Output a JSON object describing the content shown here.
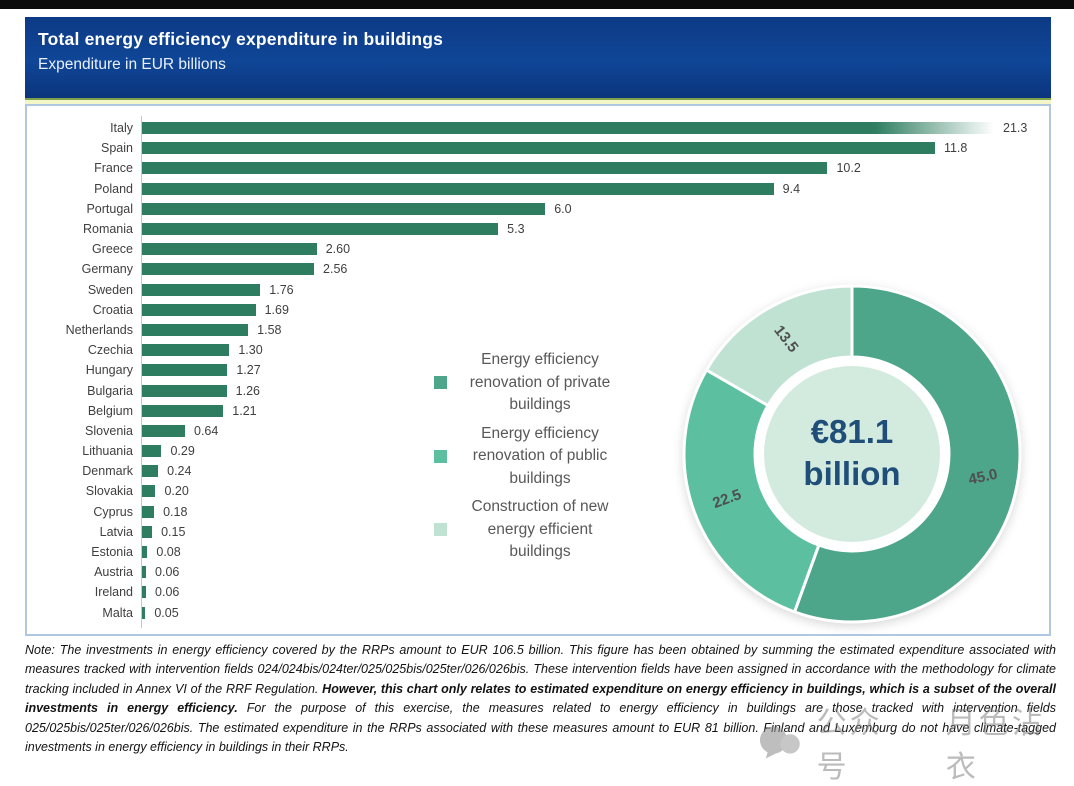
{
  "header": {
    "title": "Total energy efficiency expenditure in buildings",
    "subtitle": "Expenditure in EUR billions",
    "bg_color": "#0d3a85",
    "accent_line_color": "#f3f7c8"
  },
  "chart_data": [
    {
      "type": "bar",
      "orientation": "horizontal",
      "title": "Total energy efficiency expenditure in buildings",
      "unit": "EUR billions",
      "bar_color": "#2e7d60",
      "categories": [
        "Italy",
        "Spain",
        "France",
        "Poland",
        "Portugal",
        "Romania",
        "Greece",
        "Germany",
        "Sweden",
        "Croatia",
        "Netherlands",
        "Czechia",
        "Hungary",
        "Bulgaria",
        "Belgium",
        "Slovenia",
        "Lithuania",
        "Denmark",
        "Slovakia",
        "Cyprus",
        "Latvia",
        "Estonia",
        "Austria",
        "Ireland",
        "Malta"
      ],
      "values": [
        21.3,
        11.8,
        10.2,
        9.4,
        6.0,
        5.3,
        2.6,
        2.56,
        1.76,
        1.69,
        1.58,
        1.3,
        1.27,
        1.26,
        1.21,
        0.64,
        0.29,
        0.24,
        0.2,
        0.18,
        0.15,
        0.08,
        0.06,
        0.06,
        0.05
      ],
      "value_labels": [
        "21.3",
        "11.8",
        "10.2",
        "9.4",
        "6.0",
        "5.3",
        "2.60",
        "2.56",
        "1.76",
        "1.69",
        "1.58",
        "1.30",
        "1.27",
        "1.26",
        "1.21",
        "0.64",
        "0.29",
        "0.24",
        "0.20",
        "0.18",
        "0.15",
        "0.08",
        "0.06",
        "0.06",
        "0.05"
      ],
      "truncated_categories": [
        "Italy"
      ],
      "axis_line": true
    },
    {
      "type": "pie",
      "subtype": "donut",
      "total_label_line1": "€81.1",
      "total_label_line2": "billion",
      "center_bg": "#d3ebdf",
      "center_text_color": "#1f4e79",
      "start_angle_deg": 0,
      "slices": [
        {
          "name": "Energy efficiency renovation of private buildings",
          "value": 45.0,
          "label": "45.0",
          "color": "#4da58a",
          "label_rotation_deg": -12
        },
        {
          "name": "Energy efficiency renovation of public buildings",
          "value": 22.5,
          "label": "22.5",
          "color": "#5cc0a0",
          "label_rotation_deg": -20
        },
        {
          "name": "Construction of new energy efficient buildings",
          "value": 13.5,
          "label": "13.5",
          "color": "#bfe2d2",
          "label_rotation_deg": 52
        }
      ],
      "legend_position": "left of donut",
      "legend_items": [
        {
          "label": "Energy efficiency renovation of private buildings",
          "color": "#4da58a"
        },
        {
          "label": "Energy efficiency renovation of public buildings",
          "color": "#5cc0a0"
        },
        {
          "label": "Construction of new energy efficient buildings",
          "color": "#bfe2d2"
        }
      ]
    }
  ],
  "note": {
    "part1": "Note: The investments in energy efficiency covered by the RRPs amount to EUR 106.5 billion. This figure has been obtained by summing the estimated expenditure associated with measures tracked with intervention fields 024/024bis/024ter/025/025bis/025ter/026/026bis. These intervention fields have been assigned in accordance with the methodology for climate tracking included in Annex VI of the RRF Regulation. ",
    "part2": "However, this chart only relates to estimated expenditure on energy efficiency in buildings, which is a subset of the overall investments in energy efficiency.",
    "part3": " For the purpose of this exercise, the measures related to energy efficiency in buildings are those tracked with intervention fields 025/025bis/025ter/026/026bis. The estimated expenditure in the RRPs associated with these measures amount to EUR 81 billion. Finland and Luxemburg do not have climate-tagged investments in energy efficiency in buildings in their RRPs."
  },
  "watermark": {
    "text1": "公众号",
    "text2": "月色沾衣"
  }
}
